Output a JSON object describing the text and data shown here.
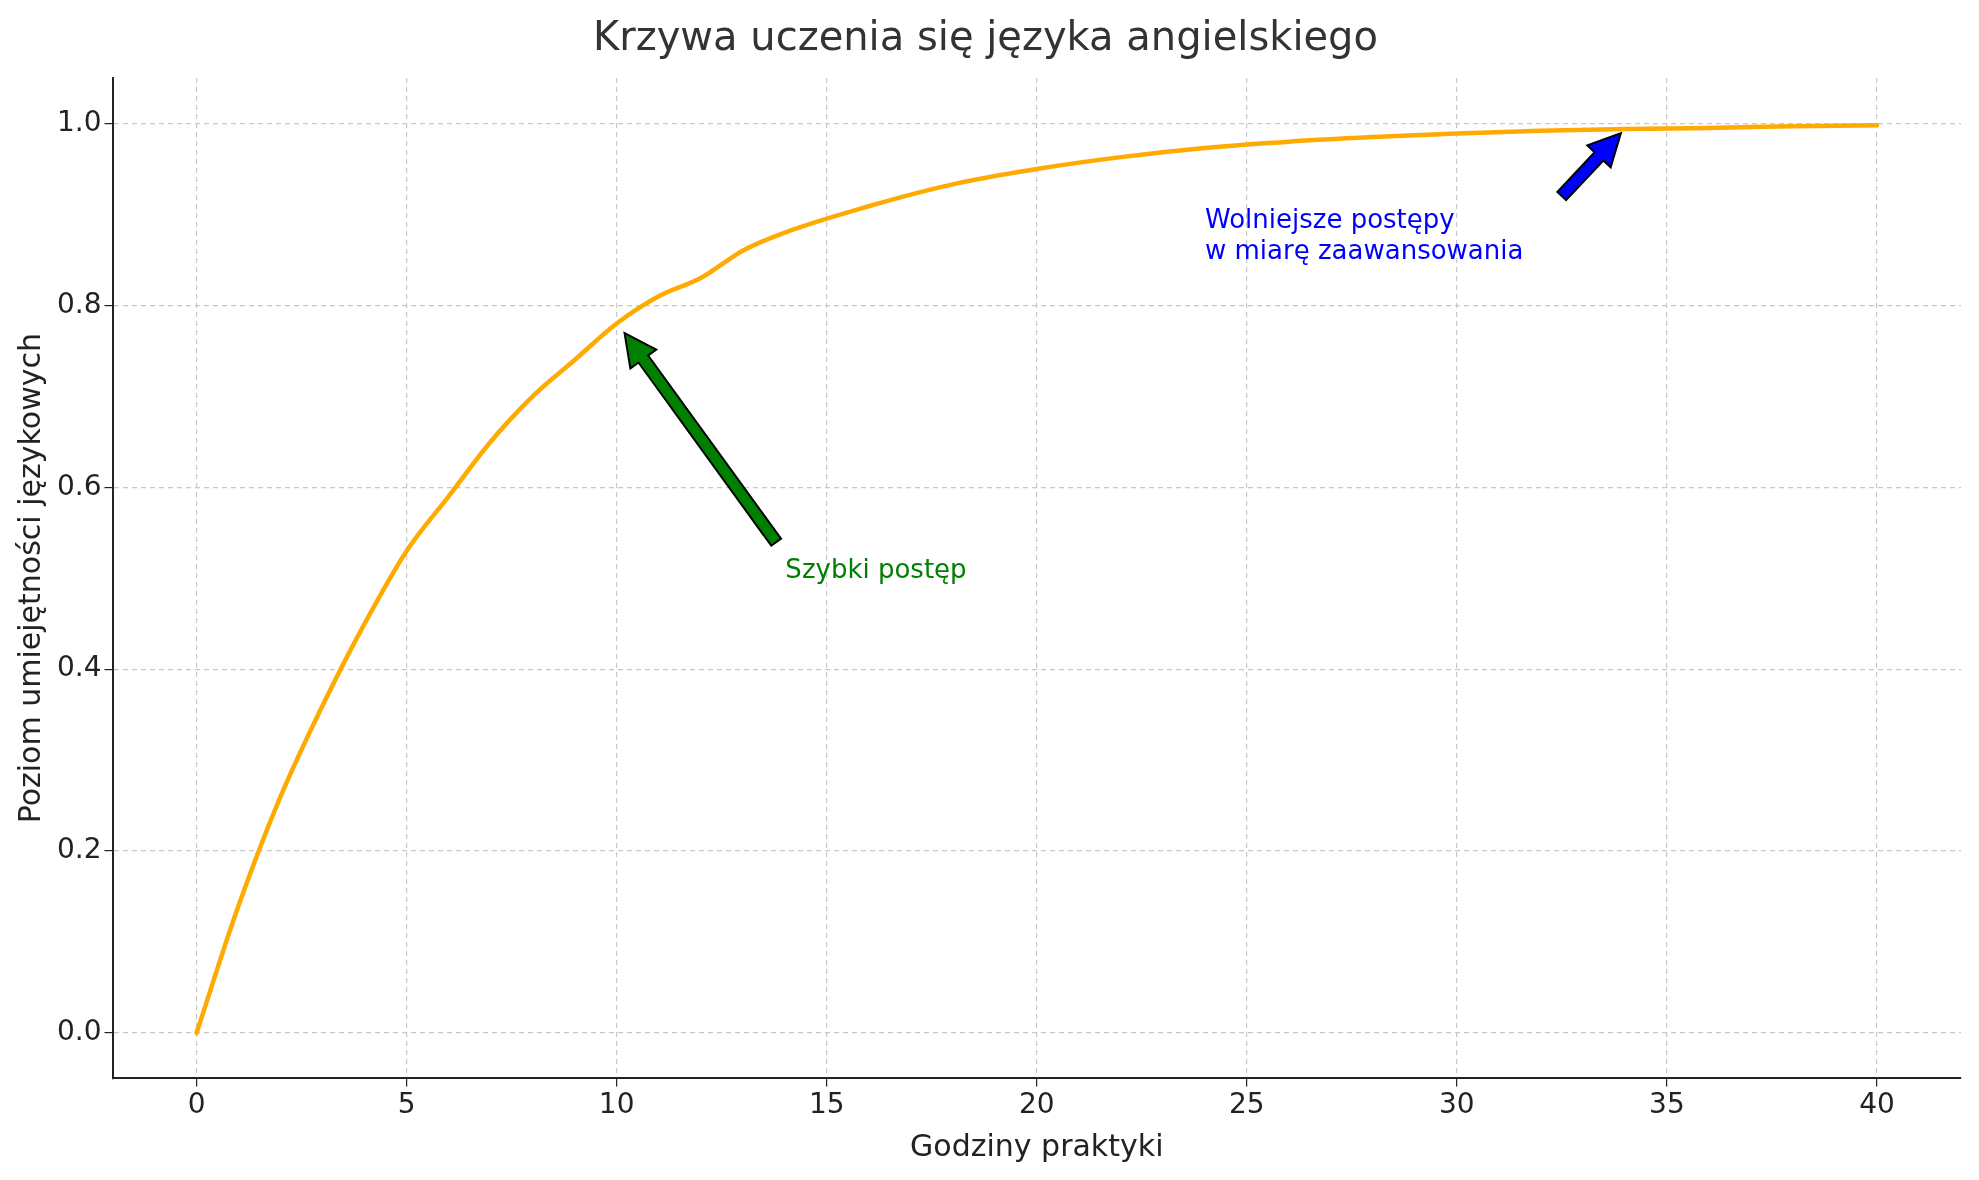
{
  "chart_data": {
    "type": "line",
    "title": "Krzywa uczenia się języka angielskiego",
    "xlabel": "Godziny praktyki",
    "ylabel": "Poziom umiejętności językowych",
    "x": [
      0,
      1,
      2,
      3,
      4,
      5,
      6,
      7,
      8,
      9,
      10,
      11,
      12,
      13,
      14,
      16,
      18,
      20,
      22,
      24,
      26,
      28,
      30,
      32,
      34,
      36,
      38,
      40
    ],
    "series": [
      {
        "color": "#ffaa00",
        "values": [
          0,
          0.14,
          0.26,
          0.36,
          0.45,
          0.53,
          0.59,
          0.65,
          0.7,
          0.74,
          0.78,
          0.81,
          0.83,
          0.86,
          0.88,
          0.909,
          0.933,
          0.95,
          0.963,
          0.973,
          0.98,
          0.985,
          0.989,
          0.992,
          0.994,
          0.995,
          0.997,
          0.998
        ]
      }
    ],
    "xlim": [
      -2,
      42
    ],
    "xticks": [
      0,
      5,
      10,
      15,
      20,
      25,
      30,
      35,
      40
    ],
    "ylim": [
      -0.05,
      1.05
    ],
    "yticks": [
      {
        "value": 0,
        "label": "0.0"
      },
      {
        "value": 0.2,
        "label": "0.2"
      },
      {
        "value": 0.4,
        "label": "0.4"
      },
      {
        "value": 0.6,
        "label": "0.6"
      },
      {
        "value": 0.8,
        "label": "0.8"
      },
      {
        "value": 1,
        "label": "1.0"
      }
    ],
    "grid": true,
    "legend": false,
    "marker": "none",
    "line_style": "solid",
    "annotations": [
      "Szybki postęp",
      "Wolniejsze postępy\nw miarę zaawansowania"
    ]
  }
}
